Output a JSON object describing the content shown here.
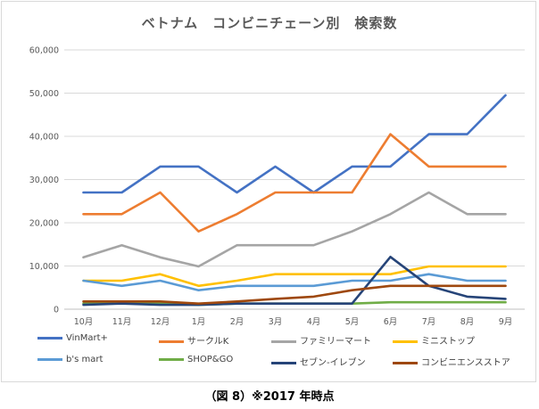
{
  "chart_data": {
    "type": "line",
    "title": "ベトナム　コンビニチェーン別　検索数",
    "categories": [
      "10月",
      "11月",
      "12月",
      "1月",
      "2月",
      "3月",
      "4月",
      "5月",
      "6月",
      "7月",
      "8月",
      "9月"
    ],
    "ylim": [
      0,
      60000
    ],
    "yticks": [
      "0",
      "10,000",
      "20,000",
      "30,000",
      "40,000",
      "50,000",
      "60,000"
    ],
    "grid": true,
    "legend_position": "bottom",
    "series": [
      {
        "name": "VinMart+",
        "color": "#4472c4",
        "values": [
          27000,
          27000,
          33000,
          33000,
          27000,
          33000,
          27000,
          33000,
          33000,
          40500,
          40500,
          49500
        ]
      },
      {
        "name": "サークルK",
        "color": "#ed7d31",
        "values": [
          22000,
          22000,
          27000,
          18000,
          22000,
          27000,
          27000,
          27000,
          40500,
          33000,
          33000,
          33000
        ]
      },
      {
        "name": "ファミリーマート",
        "color": "#a5a5a5",
        "values": [
          12000,
          14800,
          12000,
          9900,
          14800,
          14800,
          14800,
          18000,
          22000,
          27000,
          22000,
          22000
        ]
      },
      {
        "name": "ミニストップ",
        "color": "#ffc000",
        "values": [
          6600,
          6600,
          8100,
          5400,
          6600,
          8100,
          8100,
          8100,
          8100,
          9900,
          9900,
          9900
        ]
      },
      {
        "name": "b's mart",
        "color": "#5b9bd5",
        "values": [
          6600,
          5400,
          6600,
          4400,
          5400,
          5400,
          5400,
          6600,
          6600,
          8100,
          6600,
          6600
        ]
      },
      {
        "name": "SHOP&GO",
        "color": "#70ad47",
        "values": [
          1300,
          1300,
          1300,
          1000,
          1300,
          1300,
          1300,
          1300,
          1600,
          1600,
          1600,
          1600
        ]
      },
      {
        "name": "セブン-イレブン",
        "color": "#264478",
        "values": [
          1000,
          1300,
          1000,
          1000,
          1300,
          1300,
          1300,
          1300,
          12100,
          5400,
          2900,
          2400
        ]
      },
      {
        "name": "コンビニエンスストア",
        "color": "#9e480e",
        "values": [
          1800,
          1800,
          1800,
          1300,
          1800,
          2400,
          2900,
          4400,
          5400,
          5400,
          5400,
          5400
        ]
      }
    ]
  },
  "caption": "（図 8）※2017 年時点"
}
